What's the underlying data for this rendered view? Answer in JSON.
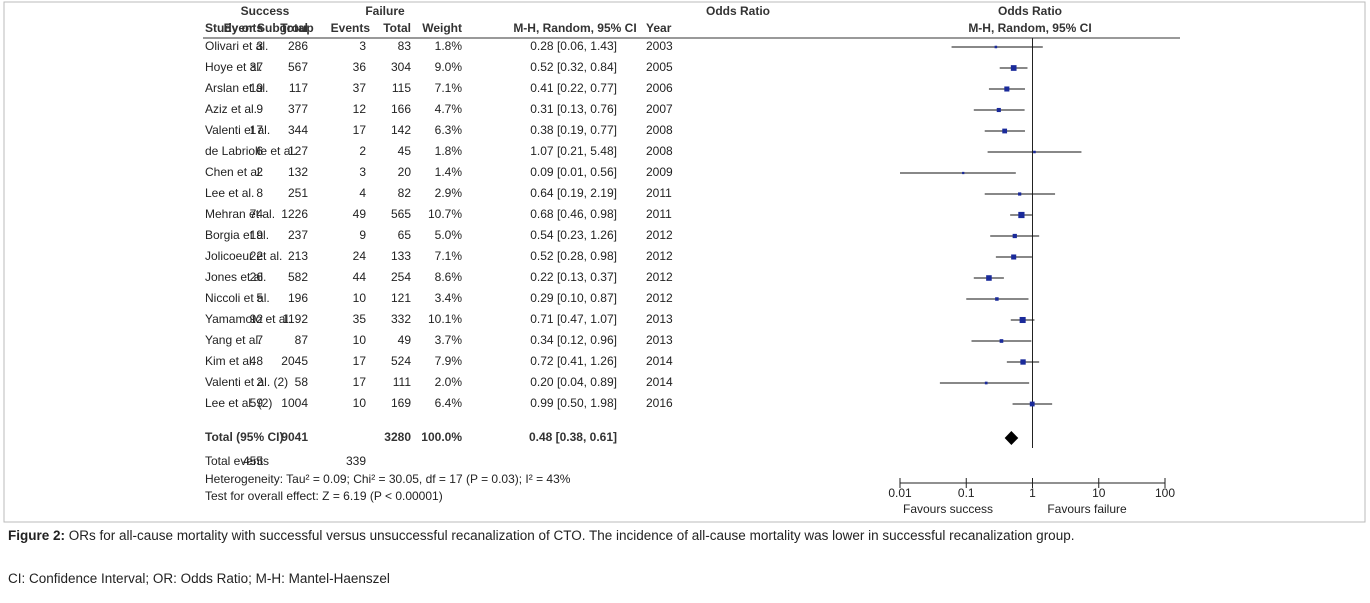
{
  "chart_data": {
    "type": "forest",
    "group_headers": [
      "Success",
      "Failure",
      "Odds Ratio",
      "Odds Ratio"
    ],
    "headers": [
      "Study or Subgroup",
      "Events",
      "Total",
      "Events",
      "Total",
      "Weight",
      "M-H, Random, 95% CI",
      "Year",
      "M-H, Random, 95% CI"
    ],
    "rows": [
      {
        "study": "Olivari et al.",
        "success_events": 3,
        "success_total": 286,
        "failure_events": 3,
        "failure_total": 83,
        "weight": 1.8,
        "weight_label": "1.8%",
        "or": 0.28,
        "ci_low": 0.06,
        "ci_high": 1.43,
        "ci_label": "0.28 [0.06, 1.43]",
        "year": 2003
      },
      {
        "study": "Hoye et al.",
        "success_events": 37,
        "success_total": 567,
        "failure_events": 36,
        "failure_total": 304,
        "weight": 9.0,
        "weight_label": "9.0%",
        "or": 0.52,
        "ci_low": 0.32,
        "ci_high": 0.84,
        "ci_label": "0.52 [0.32, 0.84]",
        "year": 2005
      },
      {
        "study": "Arslan et al.",
        "success_events": 19,
        "success_total": 117,
        "failure_events": 37,
        "failure_total": 115,
        "weight": 7.1,
        "weight_label": "7.1%",
        "or": 0.41,
        "ci_low": 0.22,
        "ci_high": 0.77,
        "ci_label": "0.41 [0.22, 0.77]",
        "year": 2006
      },
      {
        "study": "Aziz et al.",
        "success_events": 9,
        "success_total": 377,
        "failure_events": 12,
        "failure_total": 166,
        "weight": 4.7,
        "weight_label": "4.7%",
        "or": 0.31,
        "ci_low": 0.13,
        "ci_high": 0.76,
        "ci_label": "0.31 [0.13, 0.76]",
        "year": 2007
      },
      {
        "study": "Valenti et al.",
        "success_events": 17,
        "success_total": 344,
        "failure_events": 17,
        "failure_total": 142,
        "weight": 6.3,
        "weight_label": "6.3%",
        "or": 0.38,
        "ci_low": 0.19,
        "ci_high": 0.77,
        "ci_label": "0.38 [0.19, 0.77]",
        "year": 2008
      },
      {
        "study": "de Labriolle et al.",
        "success_events": 6,
        "success_total": 127,
        "failure_events": 2,
        "failure_total": 45,
        "weight": 1.8,
        "weight_label": "1.8%",
        "or": 1.07,
        "ci_low": 0.21,
        "ci_high": 5.48,
        "ci_label": "1.07 [0.21, 5.48]",
        "year": 2008
      },
      {
        "study": "Chen et al.",
        "success_events": 2,
        "success_total": 132,
        "failure_events": 3,
        "failure_total": 20,
        "weight": 1.4,
        "weight_label": "1.4%",
        "or": 0.09,
        "ci_low": 0.01,
        "ci_high": 0.56,
        "ci_label": "0.09 [0.01, 0.56]",
        "year": 2009
      },
      {
        "study": "Lee et al.",
        "success_events": 8,
        "success_total": 251,
        "failure_events": 4,
        "failure_total": 82,
        "weight": 2.9,
        "weight_label": "2.9%",
        "or": 0.64,
        "ci_low": 0.19,
        "ci_high": 2.19,
        "ci_label": "0.64 [0.19, 2.19]",
        "year": 2011
      },
      {
        "study": "Mehran et al.",
        "success_events": 74,
        "success_total": 1226,
        "failure_events": 49,
        "failure_total": 565,
        "weight": 10.7,
        "weight_label": "10.7%",
        "or": 0.68,
        "ci_low": 0.46,
        "ci_high": 0.98,
        "ci_label": "0.68 [0.46, 0.98]",
        "year": 2011
      },
      {
        "study": "Borgia et al.",
        "success_events": 19,
        "success_total": 237,
        "failure_events": 9,
        "failure_total": 65,
        "weight": 5.0,
        "weight_label": "5.0%",
        "or": 0.54,
        "ci_low": 0.23,
        "ci_high": 1.26,
        "ci_label": "0.54 [0.23, 1.26]",
        "year": 2012
      },
      {
        "study": "Jolicoeur et al.",
        "success_events": 22,
        "success_total": 213,
        "failure_events": 24,
        "failure_total": 133,
        "weight": 7.1,
        "weight_label": "7.1%",
        "or": 0.52,
        "ci_low": 0.28,
        "ci_high": 0.98,
        "ci_label": "0.52 [0.28, 0.98]",
        "year": 2012
      },
      {
        "study": "Jones et al.",
        "success_events": 26,
        "success_total": 582,
        "failure_events": 44,
        "failure_total": 254,
        "weight": 8.6,
        "weight_label": "8.6%",
        "or": 0.22,
        "ci_low": 0.13,
        "ci_high": 0.37,
        "ci_label": "0.22 [0.13, 0.37]",
        "year": 2012
      },
      {
        "study": "Niccoli et al.",
        "success_events": 5,
        "success_total": 196,
        "failure_events": 10,
        "failure_total": 121,
        "weight": 3.4,
        "weight_label": "3.4%",
        "or": 0.29,
        "ci_low": 0.1,
        "ci_high": 0.87,
        "ci_label": "0.29 [0.10, 0.87]",
        "year": 2012
      },
      {
        "study": "Yamamoto et al.",
        "success_events": 92,
        "success_total": 1192,
        "failure_events": 35,
        "failure_total": 332,
        "weight": 10.1,
        "weight_label": "10.1%",
        "or": 0.71,
        "ci_low": 0.47,
        "ci_high": 1.07,
        "ci_label": "0.71 [0.47, 1.07]",
        "year": 2013
      },
      {
        "study": "Yang et al.",
        "success_events": 7,
        "success_total": 87,
        "failure_events": 10,
        "failure_total": 49,
        "weight": 3.7,
        "weight_label": "3.7%",
        "or": 0.34,
        "ci_low": 0.12,
        "ci_high": 0.96,
        "ci_label": "0.34 [0.12, 0.96]",
        "year": 2013
      },
      {
        "study": "Kim et al.",
        "success_events": 48,
        "success_total": 2045,
        "failure_events": 17,
        "failure_total": 524,
        "weight": 7.9,
        "weight_label": "7.9%",
        "or": 0.72,
        "ci_low": 0.41,
        "ci_high": 1.26,
        "ci_label": "0.72 [0.41, 1.26]",
        "year": 2014
      },
      {
        "study": "Valenti et al. (2)",
        "success_events": 2,
        "success_total": 58,
        "failure_events": 17,
        "failure_total": 111,
        "weight": 2.0,
        "weight_label": "2.0%",
        "or": 0.2,
        "ci_low": 0.04,
        "ci_high": 0.89,
        "ci_label": "0.20 [0.04, 0.89]",
        "year": 2014
      },
      {
        "study": "Lee et al. (2)",
        "success_events": 59,
        "success_total": 1004,
        "failure_events": 10,
        "failure_total": 169,
        "weight": 6.4,
        "weight_label": "6.4%",
        "or": 0.99,
        "ci_low": 0.5,
        "ci_high": 1.98,
        "ci_label": "0.99 [0.50, 1.98]",
        "year": 2016
      }
    ],
    "total": {
      "label": "Total (95% CI)",
      "success_total": 9041,
      "failure_total": 3280,
      "weight_label": "100.0%",
      "or": 0.48,
      "ci_low": 0.38,
      "ci_high": 0.61,
      "ci_label": "0.48 [0.38, 0.61]"
    },
    "total_events": {
      "label": "Total events",
      "success": 455,
      "failure": 339
    },
    "heterogeneity": "Heterogeneity: Tau² = 0.09; Chi² = 30.05, df = 17 (P = 0.03); I² = 43%",
    "overall_effect": "Test for overall effect: Z = 6.19 (P < 0.00001)",
    "xscale": "log",
    "xlim": [
      0.01,
      100
    ],
    "xticks": [
      0.01,
      0.1,
      1,
      10,
      100
    ],
    "favours_left": "Favours success",
    "favours_right": "Favours failure",
    "color": "#1a2a9a"
  },
  "caption": {
    "label": "Figure 2:",
    "text": "ORs for all-cause mortality with successful versus unsuccessful recanalization of CTO. The incidence of all-cause mortality was lower in successful recanalization group.",
    "note": "CI: Confidence Interval; OR: Odds Ratio; M-H: Mantel-Haenszel"
  }
}
